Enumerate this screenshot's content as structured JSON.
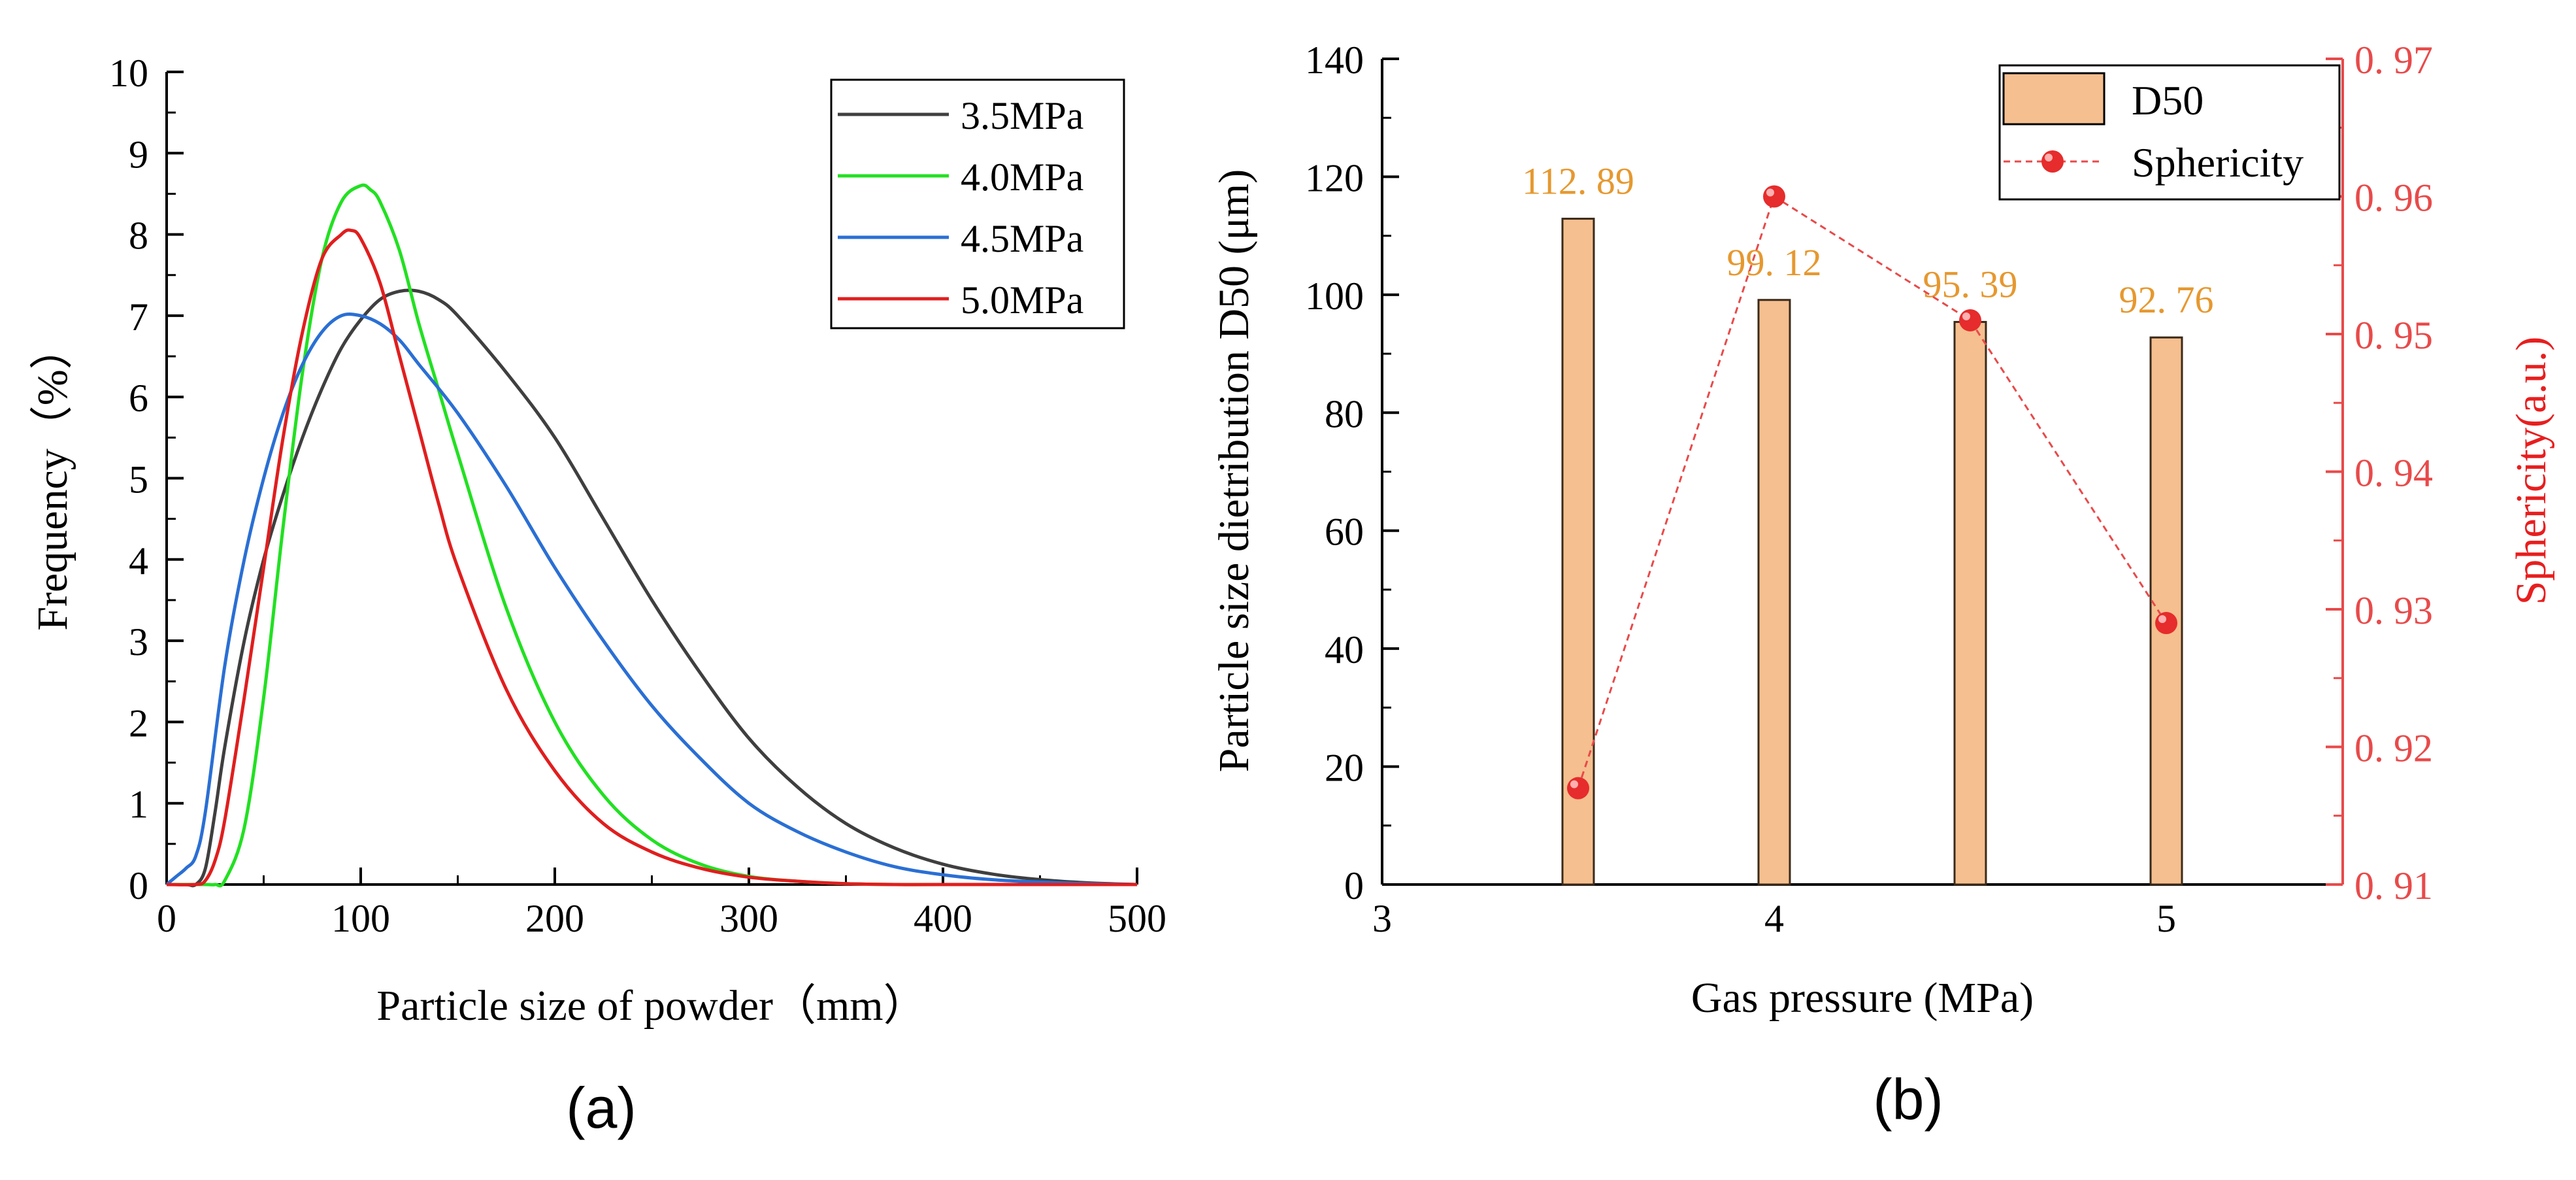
{
  "chart_data": [
    {
      "panel_label": "(a)",
      "type": "line",
      "xlabel": "Particle size of powder（mm）",
      "ylabel": "Frequency（%）",
      "xlim": [
        0,
        500
      ],
      "ylim": [
        0,
        10
      ],
      "xticks": [
        "0",
        "100",
        "200",
        "300",
        "400",
        "500"
      ],
      "yticks": [
        "0",
        "1",
        "2",
        "3",
        "4",
        "5",
        "6",
        "7",
        "8",
        "9",
        "10"
      ],
      "grid": false,
      "legend_position": "top-right",
      "series": [
        {
          "name": "3.5MPa",
          "color": "#3f3f3f",
          "x": [
            0,
            10,
            15,
            20,
            25,
            30,
            40,
            50,
            60,
            70,
            80,
            90,
            100,
            110,
            120,
            130,
            140,
            150,
            175,
            200,
            225,
            250,
            275,
            300,
            325,
            350,
            375,
            400,
            425,
            450,
            475,
            500
          ],
          "y": [
            0,
            0,
            0,
            0.2,
            0.9,
            1.7,
            3.0,
            4.0,
            4.8,
            5.5,
            6.1,
            6.6,
            6.95,
            7.2,
            7.3,
            7.3,
            7.2,
            7.0,
            6.3,
            5.5,
            4.5,
            3.5,
            2.6,
            1.8,
            1.2,
            0.75,
            0.45,
            0.25,
            0.13,
            0.06,
            0.02,
            0
          ]
        },
        {
          "name": "4.0MPa",
          "color": "#22e022",
          "x": [
            0,
            20,
            25,
            30,
            40,
            50,
            60,
            70,
            80,
            90,
            100,
            105,
            110,
            120,
            130,
            140,
            150,
            175,
            200,
            225,
            250,
            275,
            300,
            325,
            350,
            375,
            400,
            500
          ],
          "y": [
            0,
            0,
            0,
            0.05,
            0.7,
            2.3,
            4.4,
            6.3,
            7.7,
            8.4,
            8.6,
            8.55,
            8.4,
            7.8,
            6.9,
            6.1,
            5.3,
            3.4,
            2.0,
            1.1,
            0.55,
            0.25,
            0.1,
            0.04,
            0.01,
            0,
            0,
            0
          ]
        },
        {
          "name": "4.5MPa",
          "color": "#2a6fd4",
          "x": [
            0,
            5,
            10,
            15,
            20,
            30,
            40,
            50,
            60,
            70,
            80,
            90,
            100,
            110,
            120,
            130,
            150,
            175,
            200,
            225,
            250,
            275,
            300,
            325,
            350,
            375,
            400,
            425,
            450,
            475,
            500
          ],
          "y": [
            0,
            0.1,
            0.2,
            0.35,
            0.9,
            2.7,
            4.0,
            5.0,
            5.8,
            6.4,
            6.8,
            7.0,
            7.0,
            6.9,
            6.7,
            6.4,
            5.8,
            4.9,
            3.9,
            3.0,
            2.2,
            1.55,
            1.0,
            0.65,
            0.4,
            0.22,
            0.12,
            0.06,
            0.03,
            0.01,
            0
          ]
        },
        {
          "name": "5.0MPa",
          "color": "#e01e1e",
          "x": [
            0,
            15,
            20,
            25,
            30,
            40,
            50,
            60,
            70,
            80,
            90,
            95,
            100,
            110,
            120,
            130,
            140,
            150,
            175,
            200,
            225,
            250,
            275,
            300,
            325,
            350,
            375,
            400,
            500
          ],
          "y": [
            0,
            0,
            0.05,
            0.3,
            0.8,
            2.3,
            3.9,
            5.5,
            6.8,
            7.7,
            8.0,
            8.05,
            7.95,
            7.4,
            6.5,
            5.6,
            4.7,
            3.9,
            2.4,
            1.4,
            0.75,
            0.4,
            0.2,
            0.09,
            0.04,
            0.01,
            0,
            0,
            0
          ]
        }
      ]
    },
    {
      "panel_label": "(b)",
      "type": "bar",
      "xlabel": "Gas pressure (MPa)",
      "ylabel": "Particle size dietribution D50 (μm)",
      "y2label": "Sphericity(a.u.)",
      "xlim": [
        3,
        5.45
      ],
      "ylim": [
        0,
        140
      ],
      "y2lim": [
        0.91,
        0.97
      ],
      "xticks": [
        "3",
        "4",
        "5"
      ],
      "yticks": [
        "0",
        "20",
        "40",
        "60",
        "80",
        "100",
        "120",
        "140"
      ],
      "y2ticks": [
        "0. 91",
        "0. 92",
        "0. 93",
        "0. 94",
        "0. 95",
        "0. 96",
        "0. 97"
      ],
      "grid": false,
      "legend_position": "top-right",
      "x": [
        3.5,
        4.0,
        4.5,
        5.0
      ],
      "series": [
        {
          "name": "D50",
          "type": "bar",
          "color": "#f5bf8f",
          "values": [
            112.89,
            99.12,
            95.39,
            92.76
          ],
          "labels": [
            "112. 89",
            "99. 12",
            "95. 39",
            "92. 76"
          ],
          "label_color": "#e6982f"
        },
        {
          "name": "Sphericity",
          "type": "line",
          "axis": "right",
          "color": "#e84a4a",
          "values": [
            0.917,
            0.96,
            0.951,
            0.929
          ]
        }
      ]
    }
  ]
}
